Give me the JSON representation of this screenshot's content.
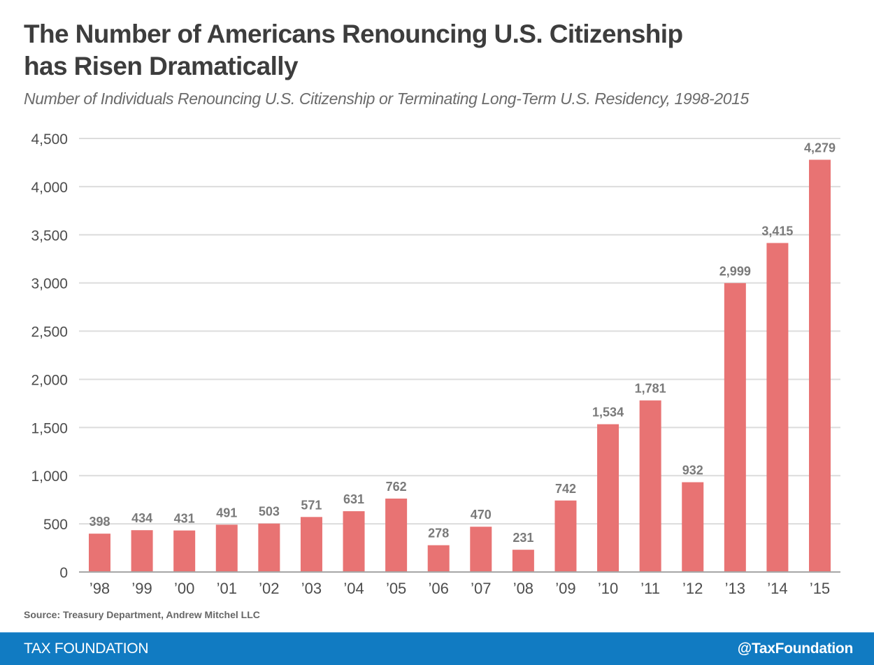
{
  "header": {
    "title_line1": "The Number of Americans Renouncing U.S. Citizenship",
    "title_line2": "has Risen Dramatically",
    "subtitle": "Number of Individuals Renouncing U.S. Citizenship or Terminating Long-Term U.S. Residency, 1998-2015"
  },
  "source": "Source: Treasury Department, Andrew Mitchel LLC",
  "footer": {
    "brand": "TAX FOUNDATION",
    "handle": "@TaxFoundation",
    "color": "#117bc2"
  },
  "chart_data": {
    "type": "bar",
    "title": "The Number of Americans Renouncing U.S. Citizenship has Risen Dramatically",
    "subtitle": "Number of Individuals Renouncing U.S. Citizenship or Terminating Long-Term U.S. Residency, 1998-2015",
    "xlabel": "",
    "ylabel": "",
    "categories": [
      "’98",
      "’99",
      "’00",
      "’01",
      "’02",
      "’03",
      "’04",
      "’05",
      "’06",
      "’07",
      "’08",
      "’09",
      "’10",
      "’11",
      "’12",
      "’13",
      "’14",
      "’15"
    ],
    "values": [
      398,
      434,
      431,
      491,
      503,
      571,
      631,
      762,
      278,
      470,
      231,
      742,
      1534,
      1781,
      932,
      2999,
      3415,
      4279
    ],
    "data_labels": [
      "398",
      "434",
      "431",
      "491",
      "503",
      "571",
      "631",
      "762",
      "278",
      "470",
      "231",
      "742",
      "1,534",
      "1,781",
      "932",
      "2,999",
      "3,415",
      "4,279"
    ],
    "ylim": [
      0,
      4500
    ],
    "yticks": [
      0,
      500,
      1000,
      1500,
      2000,
      2500,
      3000,
      3500,
      4000,
      4500
    ],
    "ytick_labels": [
      "0",
      "500",
      "1,000",
      "1,500",
      "2,000",
      "2,500",
      "3,000",
      "3,500",
      "4,000",
      "4,500"
    ],
    "grid": true,
    "legend": "none",
    "bar_color": "#e87373",
    "grid_color": "#dcdcdc",
    "axis_color": "#a6a6a6"
  }
}
